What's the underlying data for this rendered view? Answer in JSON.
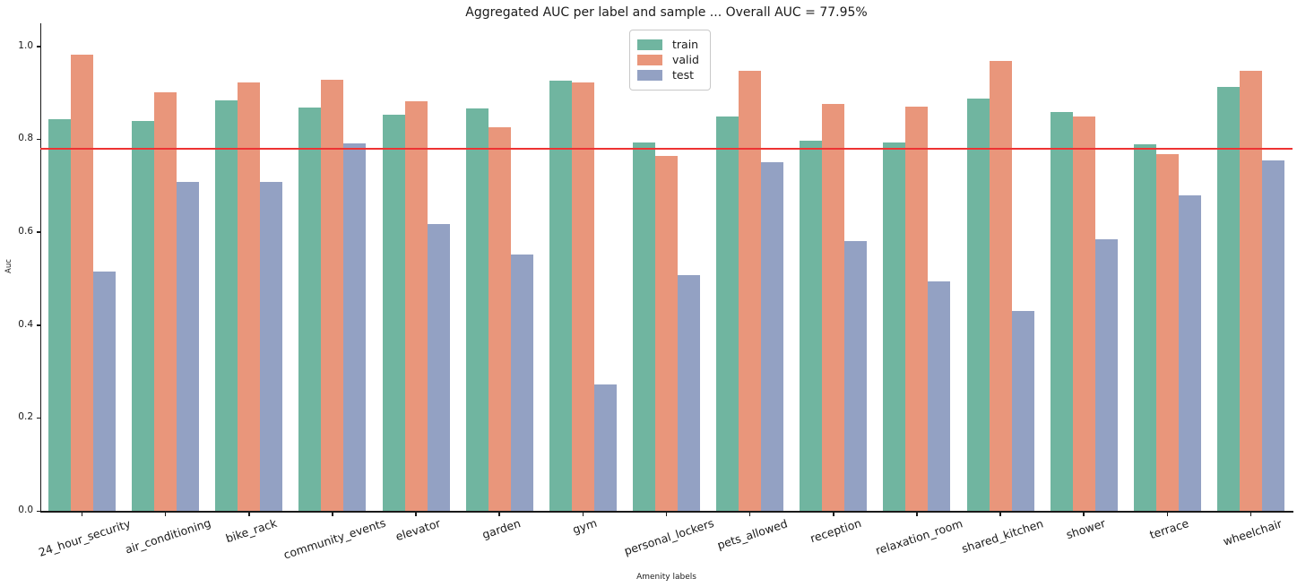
{
  "chart_data": {
    "type": "bar",
    "title": "Aggregated AUC per label and sample ... Overall AUC = 77.95%",
    "xlabel": "Amenity labels",
    "ylabel": "Auc",
    "ylim": [
      0.0,
      1.05
    ],
    "yticks": [
      "0.0",
      "0.2",
      "0.4",
      "0.6",
      "0.8",
      "1.0"
    ],
    "grid": false,
    "legend_position": "upper-center",
    "overall_auc": "77.95%",
    "reference_line": {
      "value": 0.7795,
      "color": "#ee3333"
    },
    "categories": [
      "24_hour_security",
      "air_conditioning",
      "bike_rack",
      "community_events",
      "elevator",
      "garden",
      "gym",
      "personal_lockers",
      "pets_allowed",
      "reception",
      "relaxation_room",
      "shared_kitchen",
      "shower",
      "terrace",
      "wheelchair"
    ],
    "series": [
      {
        "name": "train",
        "color": "#70b5a0",
        "values": [
          0.842,
          0.838,
          0.883,
          0.868,
          0.853,
          0.866,
          0.926,
          0.792,
          0.848,
          0.797,
          0.792,
          0.887,
          0.859,
          0.789,
          0.913
        ]
      },
      {
        "name": "valid",
        "color": "#e9967b",
        "values": [
          0.982,
          0.901,
          0.922,
          0.928,
          0.882,
          0.826,
          0.921,
          0.763,
          0.946,
          0.876,
          0.87,
          0.968,
          0.848,
          0.768,
          0.947
        ]
      },
      {
        "name": "test",
        "color": "#93a1c3",
        "values": [
          0.514,
          0.707,
          0.707,
          0.79,
          0.617,
          0.552,
          0.272,
          0.508,
          0.751,
          0.58,
          0.493,
          0.43,
          0.585,
          0.678,
          0.754
        ]
      }
    ]
  }
}
